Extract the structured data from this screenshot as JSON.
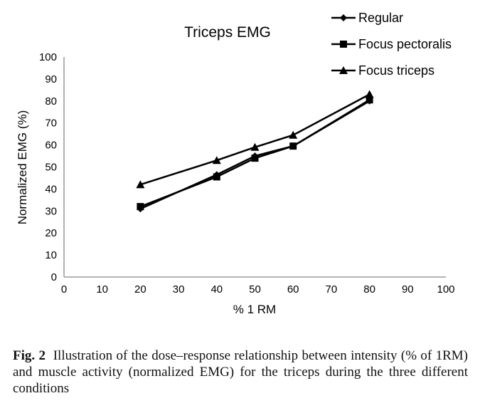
{
  "chart_data": {
    "type": "line",
    "title": "Triceps EMG",
    "xlabel": "% 1 RM",
    "ylabel": "Normalized EMG (%)",
    "xlim": [
      0,
      100
    ],
    "ylim": [
      0,
      100
    ],
    "xticks": [
      0,
      10,
      20,
      30,
      40,
      50,
      60,
      70,
      80,
      90,
      100
    ],
    "yticks": [
      0,
      10,
      20,
      30,
      40,
      50,
      60,
      70,
      80,
      90,
      100
    ],
    "grid": false,
    "legend_position": "top-right",
    "x": [
      20,
      40,
      50,
      60,
      80
    ],
    "series": [
      {
        "name": "Regular",
        "marker": "diamond",
        "values": [
          31,
          46.5,
          55,
          59.5,
          80
        ]
      },
      {
        "name": "Focus pectoralis",
        "marker": "square",
        "values": [
          32,
          45.5,
          54,
          59.5,
          80.5
        ]
      },
      {
        "name": "Focus triceps",
        "marker": "triangle",
        "values": [
          42,
          53,
          59,
          64.5,
          83
        ]
      }
    ]
  },
  "caption": {
    "label": "Fig. 2",
    "text": "Illustration of the dose–response relationship between intensity (% of 1RM) and muscle activity (normalized EMG) for the triceps during the three different conditions"
  }
}
